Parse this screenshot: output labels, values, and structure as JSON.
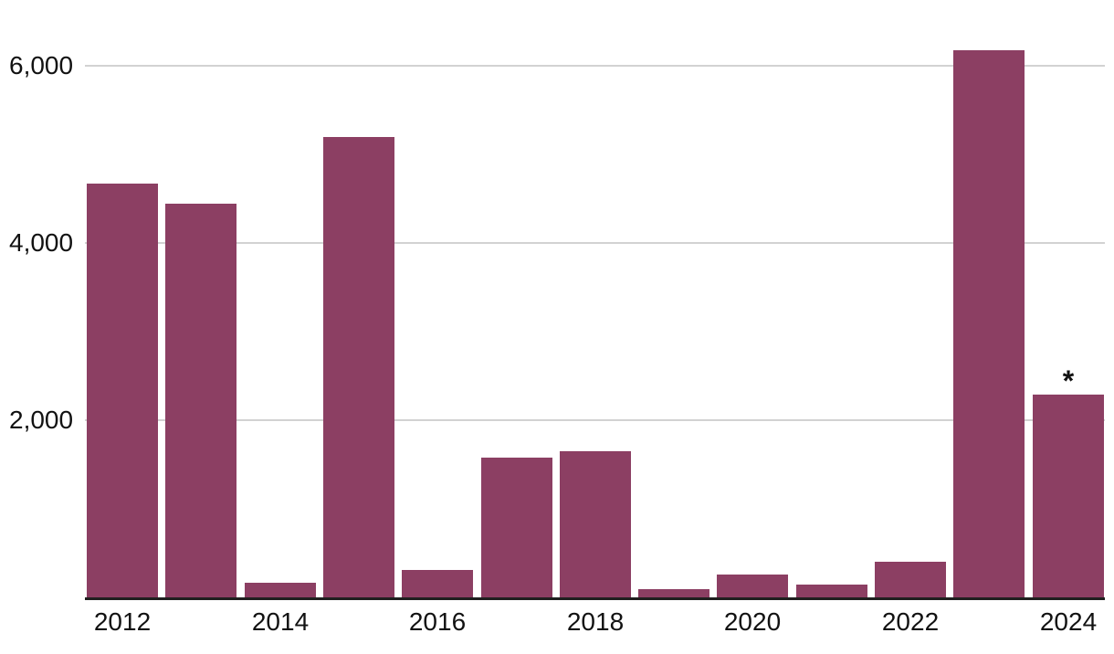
{
  "chart_data": {
    "type": "bar",
    "categories": [
      2012,
      2013,
      2014,
      2015,
      2016,
      2017,
      2018,
      2019,
      2020,
      2021,
      2022,
      2023,
      2024
    ],
    "values": [
      4670,
      4440,
      170,
      5200,
      310,
      1580,
      1650,
      90,
      260,
      140,
      400,
      6180,
      2290
    ],
    "title": "",
    "xlabel": "",
    "ylabel": "",
    "ylim": [
      0,
      6740
    ],
    "grid": true,
    "legend": "none",
    "y_ticks": [
      {
        "value": 2000,
        "label": "2,000"
      },
      {
        "value": 4000,
        "label": "4,000"
      },
      {
        "value": 6000,
        "label": "6,000"
      }
    ],
    "x_ticks": [
      {
        "year": 2012,
        "label": "2012"
      },
      {
        "year": 2014,
        "label": "2014"
      },
      {
        "year": 2016,
        "label": "2016"
      },
      {
        "year": 2018,
        "label": "2018"
      },
      {
        "year": 2020,
        "label": "2020"
      },
      {
        "year": 2022,
        "label": "2022"
      },
      {
        "year": 2024,
        "label": "2024"
      }
    ],
    "annotation": {
      "text": "*",
      "year": 2024
    }
  },
  "colors": {
    "bar": "#8c3f63",
    "gridline": "#d2d2d2",
    "axis_line": "#1f1f1f",
    "text": "#121212",
    "background": "#ffffff"
  }
}
